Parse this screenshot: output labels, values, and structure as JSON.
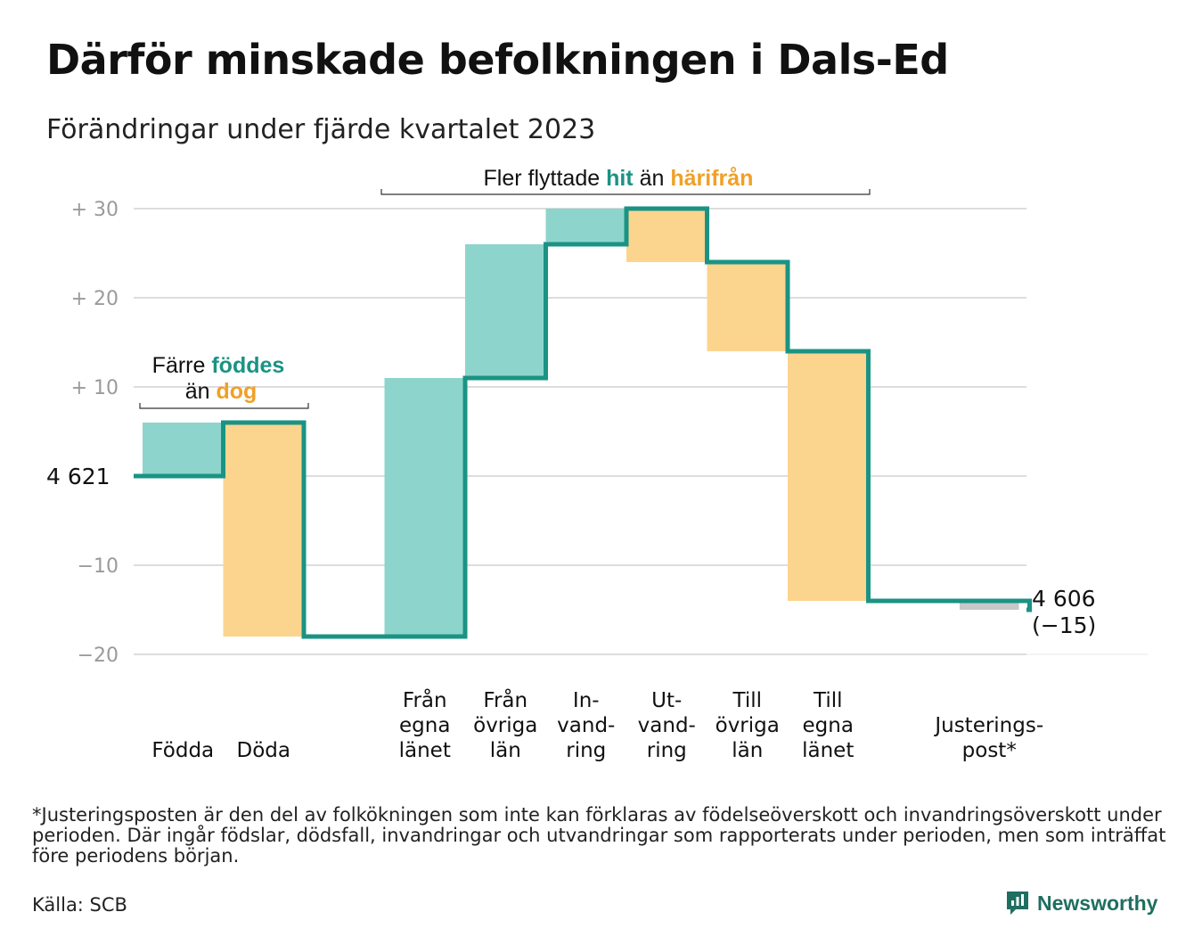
{
  "title": "Därför minskade befolkningen i Dals-Ed",
  "subtitle": "Förändringar under fjärde kvartalet 2023",
  "annotations": {
    "births": {
      "part1": "Färre",
      "part2": "föddes",
      "part3": "än",
      "part4": "dog"
    },
    "migration": {
      "part1": "Fler flyttade",
      "part2": "hit",
      "part3": "än",
      "part4": "härifrån"
    }
  },
  "start_label": "4 621",
  "end_label": {
    "value": "4 606",
    "change": "(−15)"
  },
  "footnote": "*Justeringsposten är den del av folkökningen som inte kan förklaras av födelseöverskott och invandringsöverskott under perioden. Där ingår födslar, dödsfall, invandringar och utvandringar som rapporterats under perioden, men som inträffat före periodens början.",
  "source": "Källa: SCB",
  "brand": "Newsworthy",
  "colors": {
    "increase": "#8dd5cc",
    "decrease": "#fbd48e",
    "adjustment": "#c8c8c8",
    "line": "#1a9384",
    "grid": "#dddddd"
  },
  "chart_data": {
    "type": "waterfall",
    "start_value": 4621,
    "end_value": 4606,
    "net_change": -15,
    "y_tick_labels": [
      "+  30",
      "+  20",
      "+  10",
      "",
      "−10",
      "−20"
    ],
    "y_ticks": [
      30,
      20,
      10,
      0,
      -10,
      -20
    ],
    "ylim": [
      -20,
      30
    ],
    "categories": [
      {
        "label": [
          "Födda"
        ],
        "change": 6,
        "kind": "increase"
      },
      {
        "label": [
          "Döda"
        ],
        "change": -24,
        "kind": "decrease"
      },
      {
        "label": [],
        "change": 0,
        "kind": "gap"
      },
      {
        "label": [
          "Från",
          "egna",
          "länet"
        ],
        "change": 29,
        "kind": "increase"
      },
      {
        "label": [
          "Från",
          "övriga",
          "län"
        ],
        "change": 15,
        "kind": "increase"
      },
      {
        "label": [
          "In-",
          "vand-",
          "ring"
        ],
        "change": 4,
        "kind": "increase"
      },
      {
        "label": [
          "Ut-",
          "vand-",
          "ring"
        ],
        "change": -6,
        "kind": "decrease"
      },
      {
        "label": [
          "Till",
          "övriga",
          "län"
        ],
        "change": -10,
        "kind": "decrease"
      },
      {
        "label": [
          "Till",
          "egna",
          "länet"
        ],
        "change": -28,
        "kind": "decrease"
      },
      {
        "label": [],
        "change": 0,
        "kind": "gap"
      },
      {
        "label": [
          "Justerings-",
          "post*"
        ],
        "change": -1,
        "kind": "adjustment"
      }
    ]
  }
}
